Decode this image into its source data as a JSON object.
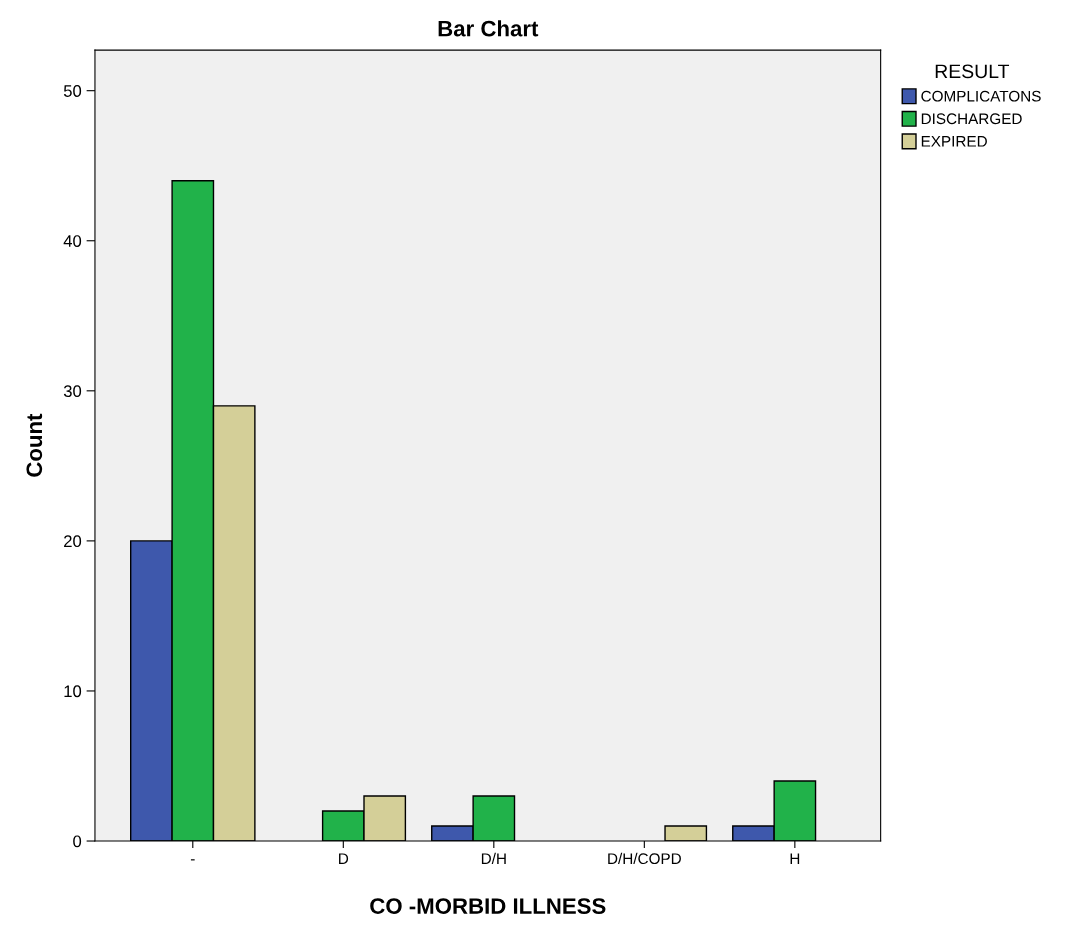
{
  "chart_data": {
    "type": "bar",
    "title": "Bar Chart",
    "xlabel": "CO -MORBID ILLNESS",
    "ylabel": "Count",
    "legend_title": "RESULT",
    "categories": [
      "-",
      "D",
      "D/H",
      "D/H/COPD",
      "H"
    ],
    "series": [
      {
        "name": "COMPLICATONS",
        "color": "#3e58ac",
        "values": [
          20,
          null,
          1,
          null,
          1
        ]
      },
      {
        "name": "DISCHARGED",
        "color": "#21b24a",
        "values": [
          44,
          2,
          3,
          null,
          4
        ]
      },
      {
        "name": "EXPIRED",
        "color": "#d4cf98",
        "values": [
          29,
          3,
          null,
          1,
          null
        ]
      }
    ],
    "ylim": [
      0,
      52.7
    ],
    "yticks": [
      0,
      10,
      20,
      30,
      40,
      50
    ],
    "grid": false,
    "legend": "top right"
  }
}
